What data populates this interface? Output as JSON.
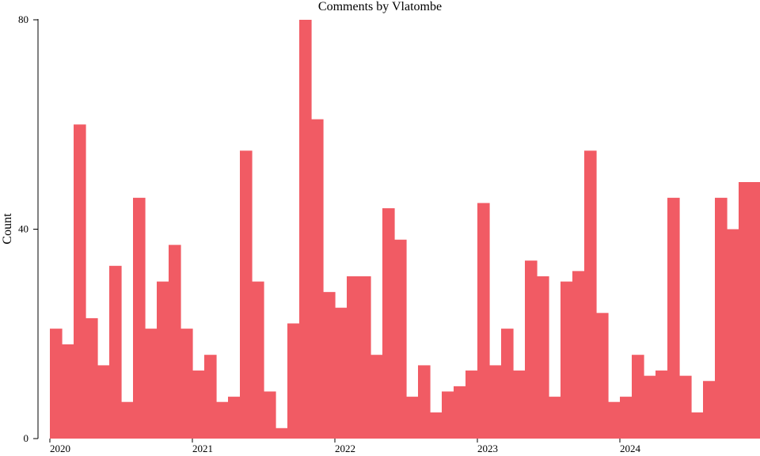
{
  "chart_data": {
    "type": "bar",
    "title": "Comments by Vlatombe",
    "xlabel": "",
    "ylabel": "Count",
    "ylim": [
      0,
      80
    ],
    "y_ticks": [
      "0",
      "40",
      "80"
    ],
    "x_ticks": [
      {
        "label": "2020",
        "month": 0
      },
      {
        "label": "2021",
        "month": 12
      },
      {
        "label": "2022",
        "month": 24
      },
      {
        "label": "2023",
        "month": 36
      },
      {
        "label": "2024",
        "month": 48
      }
    ],
    "grid": false,
    "legend": "none",
    "bar_color": "#f15b64",
    "categories": [
      "2020-01",
      "2020-02",
      "2020-03",
      "2020-04",
      "2020-05",
      "2020-06",
      "2020-07",
      "2020-08",
      "2020-09",
      "2020-10",
      "2020-11",
      "2020-12",
      "2021-01",
      "2021-02",
      "2021-03",
      "2021-04",
      "2021-05",
      "2021-06",
      "2021-07",
      "2021-08",
      "2021-09",
      "2021-10",
      "2021-11",
      "2021-12",
      "2022-01",
      "2022-02",
      "2022-03",
      "2022-04",
      "2022-05",
      "2022-06",
      "2022-07",
      "2022-08",
      "2022-09",
      "2022-10",
      "2022-11",
      "2022-12",
      "2023-01",
      "2023-02",
      "2023-03",
      "2023-04",
      "2023-05",
      "2023-06",
      "2023-07",
      "2023-08",
      "2023-09",
      "2023-10",
      "2023-11",
      "2023-12",
      "2024-01",
      "2024-02",
      "2024-03",
      "2024-04",
      "2024-05",
      "2024-06",
      "2024-07",
      "2024-08",
      "2024-09",
      "2024-10",
      "2024-11",
      "2024-12"
    ],
    "values": [
      21,
      18,
      60,
      23,
      14,
      33,
      7,
      46,
      21,
      30,
      37,
      21,
      13,
      16,
      7,
      8,
      55,
      30,
      9,
      2,
      22,
      80,
      61,
      28,
      25,
      31,
      31,
      16,
      44,
      38,
      8,
      14,
      5,
      9,
      10,
      13,
      45,
      14,
      21,
      13,
      34,
      31,
      8,
      30,
      32,
      55,
      24,
      7,
      8,
      16,
      12,
      13,
      46,
      12,
      5,
      11,
      46,
      40,
      49,
      49
    ]
  }
}
